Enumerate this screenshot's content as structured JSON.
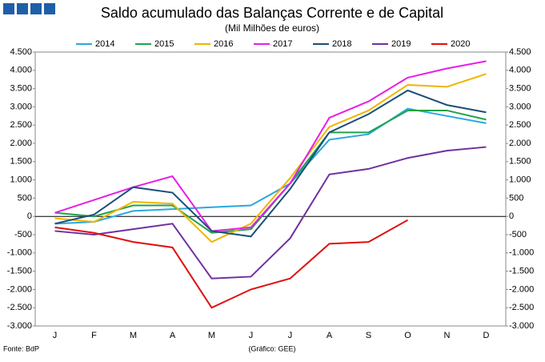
{
  "chart_data": {
    "type": "line",
    "title": "Saldo acumulado das Balanças Corrente e de Capital",
    "subtitle": "(Mil Milhões de euros)",
    "source": "Fonte: BdP",
    "credit": "(Gráfico: GEE)",
    "categories": [
      "J",
      "F",
      "M",
      "A",
      "M",
      "J",
      "J",
      "A",
      "S",
      "O",
      "N",
      "D"
    ],
    "series": [
      {
        "name": "2014",
        "color": "#29a8e0",
        "values": [
          -200,
          -150,
          150,
          200,
          250,
          300,
          900,
          2100,
          2250,
          2950,
          2750,
          2550
        ]
      },
      {
        "name": "2015",
        "color": "#1fa34a",
        "values": [
          100,
          0,
          300,
          300,
          -450,
          -350,
          900,
          2300,
          2300,
          2900,
          2900,
          2650
        ]
      },
      {
        "name": "2016",
        "color": "#f0b400",
        "values": [
          -50,
          -150,
          400,
          350,
          -700,
          -200,
          1050,
          2450,
          2900,
          3600,
          3550,
          3900
        ]
      },
      {
        "name": "2017",
        "color": "#e81ee8",
        "values": [
          100,
          450,
          800,
          1100,
          -400,
          -300,
          900,
          2700,
          3150,
          3800,
          4050,
          4250
        ]
      },
      {
        "name": "2018",
        "color": "#1a4f7a",
        "values": [
          -200,
          50,
          800,
          650,
          -400,
          -550,
          750,
          2300,
          2800,
          3450,
          3050,
          2850
        ]
      },
      {
        "name": "2019",
        "color": "#7030a0",
        "values": [
          -400,
          -500,
          -350,
          -200,
          -1700,
          -1650,
          -600,
          1150,
          1300,
          1600,
          1800,
          1900
        ]
      },
      {
        "name": "2020",
        "color": "#e01010",
        "values": [
          -300,
          -450,
          -700,
          -850,
          -2500,
          -2000,
          -1700,
          -750,
          -700,
          -100,
          null,
          null
        ]
      }
    ],
    "ylim": [
      -3000,
      4500
    ],
    "yticks": [
      {
        "value": -3000,
        "label": "-3.000"
      },
      {
        "value": -2500,
        "label": "-2.500"
      },
      {
        "value": -2000,
        "label": "-2.000"
      },
      {
        "value": -1500,
        "label": "-1.500"
      },
      {
        "value": -1000,
        "label": "-1.000"
      },
      {
        "value": -500,
        "label": "-500"
      },
      0,
      {
        "value": 500,
        "label": "500"
      },
      {
        "value": 1000,
        "label": "1.000"
      },
      {
        "value": 1500,
        "label": "1.500"
      },
      {
        "value": 2000,
        "label": "2.000"
      },
      {
        "value": 2500,
        "label": "2.500"
      },
      {
        "value": 3000,
        "label": "3.000"
      },
      {
        "value": 3500,
        "label": "3.500"
      },
      {
        "value": 4000,
        "label": "4.000"
      },
      {
        "value": 4500,
        "label": "4.500"
      }
    ],
    "grid": false
  }
}
